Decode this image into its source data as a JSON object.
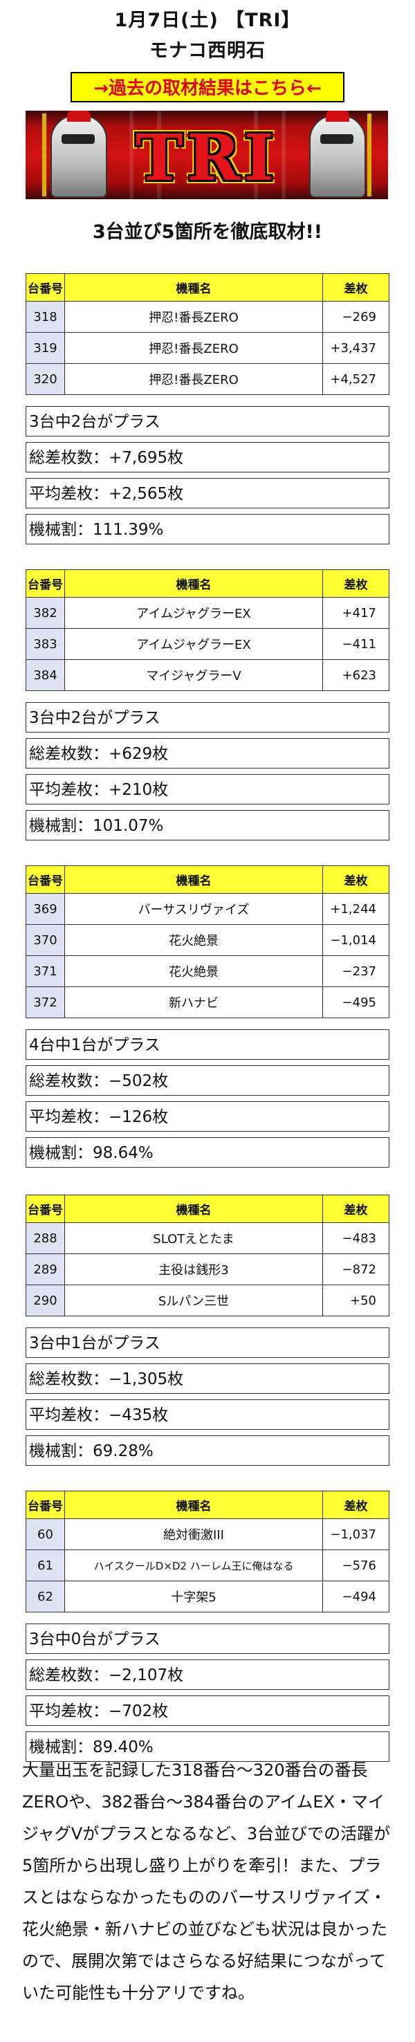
{
  "header": {
    "date_line": "1月7日(土) 【TRI】",
    "store_line": "モナコ西明石",
    "past_results_link": "→過去の取材結果はこちら←",
    "banner_logo": "TRI"
  },
  "subtitle": "3台並び5箇所を徹底取材!!",
  "table_headers": {
    "number": "台番号",
    "machine": "機種名",
    "diff": "差枚"
  },
  "groups": [
    {
      "rows": [
        {
          "number": "318",
          "machine": "押忍!番長ZERO",
          "diff": "−269"
        },
        {
          "number": "319",
          "machine": "押忍!番長ZERO",
          "diff": "+3,437"
        },
        {
          "number": "320",
          "machine": "押忍!番長ZERO",
          "diff": "+4,527"
        }
      ],
      "plus_count": "3台中2台がプラス",
      "total": "総差枚数：+7,695枚",
      "average": "平均差枚：+2,565枚",
      "payout": "機械割：111.39%"
    },
    {
      "rows": [
        {
          "number": "382",
          "machine": "アイムジャグラーEX",
          "diff": "+417"
        },
        {
          "number": "383",
          "machine": "アイムジャグラーEX",
          "diff": "−411"
        },
        {
          "number": "384",
          "machine": "マイジャグラーV",
          "diff": "+623"
        }
      ],
      "plus_count": "3台中2台がプラス",
      "total": "総差枚数：+629枚",
      "average": "平均差枚：+210枚",
      "payout": "機械割：101.07%"
    },
    {
      "rows": [
        {
          "number": "369",
          "machine": "バーサスリヴァイズ",
          "diff": "+1,244"
        },
        {
          "number": "370",
          "machine": "花火絶景",
          "diff": "−1,014"
        },
        {
          "number": "371",
          "machine": "花火絶景",
          "diff": "−237"
        },
        {
          "number": "372",
          "machine": "新ハナビ",
          "diff": "−495"
        }
      ],
      "plus_count": "4台中1台がプラス",
      "total": "総差枚数：−502枚",
      "average": "平均差枚：−126枚",
      "payout": "機械割：98.64%"
    },
    {
      "rows": [
        {
          "number": "288",
          "machine": "SLOTえとたま",
          "diff": "−483"
        },
        {
          "number": "289",
          "machine": "主役は銭形3",
          "diff": "−872"
        },
        {
          "number": "290",
          "machine": "Sルパン三世",
          "diff": "+50"
        }
      ],
      "plus_count": "3台中1台がプラス",
      "total": "総差枚数：−1,305枚",
      "average": "平均差枚：−435枚",
      "payout": "機械割：69.28%"
    },
    {
      "rows": [
        {
          "number": "60",
          "machine": "絶対衝激III",
          "diff": "−1,037"
        },
        {
          "number": "61",
          "machine": "ハイスクールD×D2 ハーレム王に俺はなる",
          "diff": "−576"
        },
        {
          "number": "62",
          "machine": "十字架5",
          "diff": "−494"
        }
      ],
      "plus_count": "3台中0台がプラス",
      "total": "総差枚数：−2,107枚",
      "average": "平均差枚：−702枚",
      "payout": "機械割：89.40%"
    }
  ],
  "summary": "大量出玉を記録した318番台〜320番台の番長ZEROや、382番台〜384番台のアイムEX・マイジャグVがプラスとなるなど、3台並びでの活躍が5箇所から出現し盛り上がりを牽引！また、プラスとはならなかったもののバーサスリヴァイズ・花火絶景・新ハナビの並びなども状況は良かったので、展開次第ではさらなる好結果につながっていた可能性も十分アリですね。"
}
